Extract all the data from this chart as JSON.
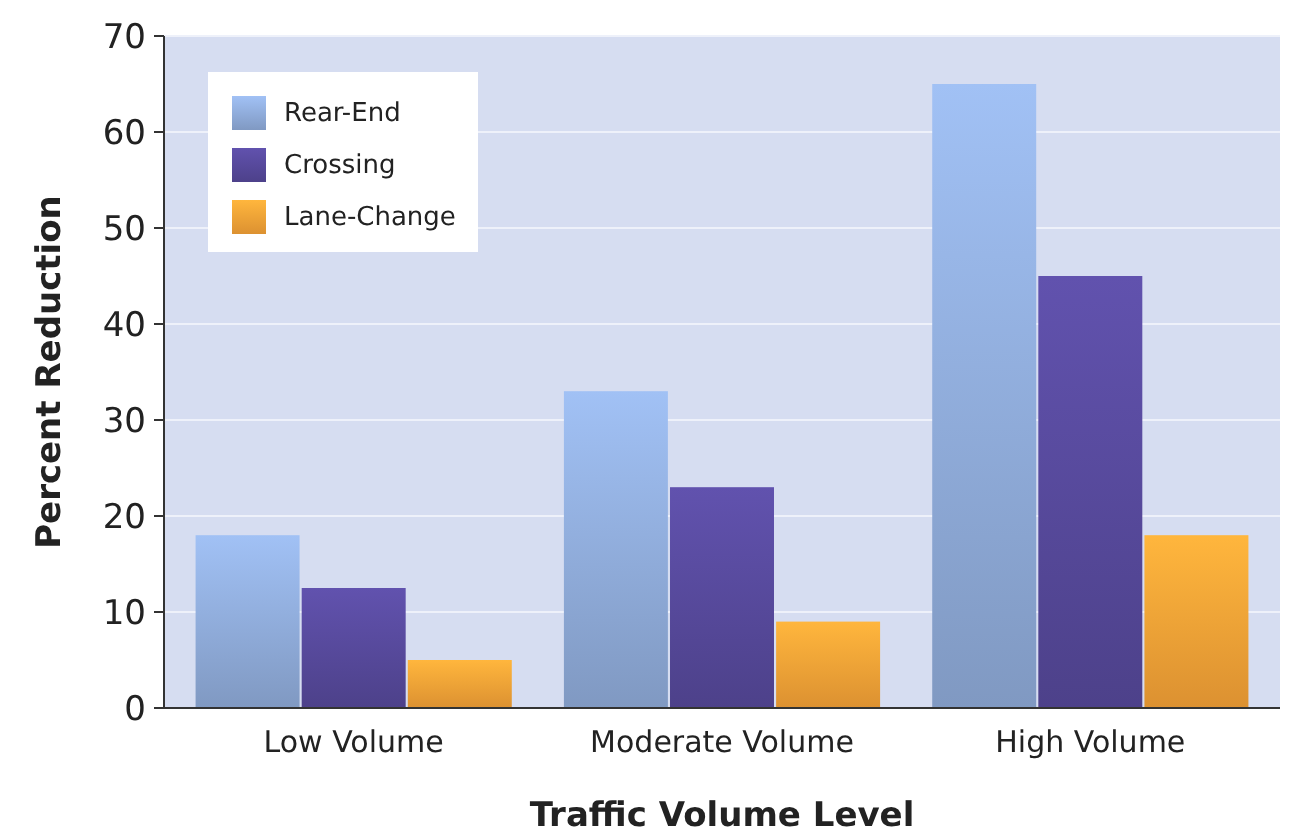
{
  "chart_data": {
    "type": "bar",
    "xlabel": "Traffic Volume Level",
    "ylabel": "Percent Reduction",
    "categories": [
      "Low Volume",
      "Moderate Volume",
      "High Volume"
    ],
    "series": [
      {
        "name": "Rear-End",
        "color": "#8eaad8",
        "values": [
          18,
          33,
          65
        ]
      },
      {
        "name": "Crossing",
        "color": "#56489a",
        "values": [
          12.5,
          23,
          45
        ]
      },
      {
        "name": "Lane-Change",
        "color": "#f5a136",
        "values": [
          5,
          9,
          18
        ]
      }
    ],
    "ylim": [
      0,
      70
    ],
    "yticks": [
      0,
      10,
      20,
      30,
      40,
      50,
      60,
      70
    ],
    "grid": "y",
    "legend": "top left"
  }
}
